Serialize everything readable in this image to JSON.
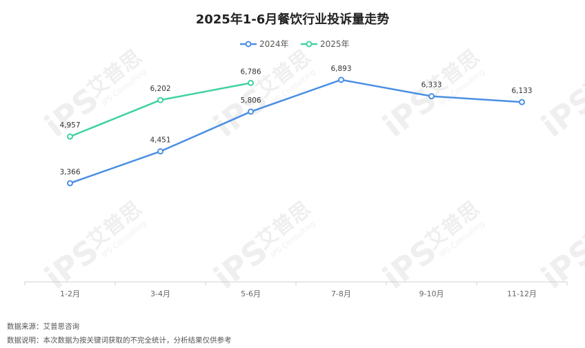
{
  "chart_data": {
    "type": "line",
    "title": "2025年1-6月餐饮行业投诉量走势",
    "categories": [
      "1-2月",
      "3-4月",
      "5-6月",
      "7-8月",
      "9-10月",
      "11-12月"
    ],
    "series": [
      {
        "name": "2024年",
        "color": "#4a8fe3",
        "values": [
          3366,
          4451,
          5806,
          6893,
          6333,
          6133
        ]
      },
      {
        "name": "2025年",
        "color": "#3fd2a0",
        "values": [
          4957,
          6202,
          6786,
          null,
          null,
          null
        ]
      }
    ],
    "ylim": [
      0,
      7500
    ],
    "grid": false,
    "legend_position": "top-center"
  },
  "footer": {
    "source": "数据来源：艾普思咨询",
    "note": "数据说明：本次数据为按关键词获取的不完全统计，分析结果仅供参考"
  },
  "watermark": {
    "text": "艾普思",
    "sub": "IPS Consulting",
    "logo": "iPS"
  }
}
